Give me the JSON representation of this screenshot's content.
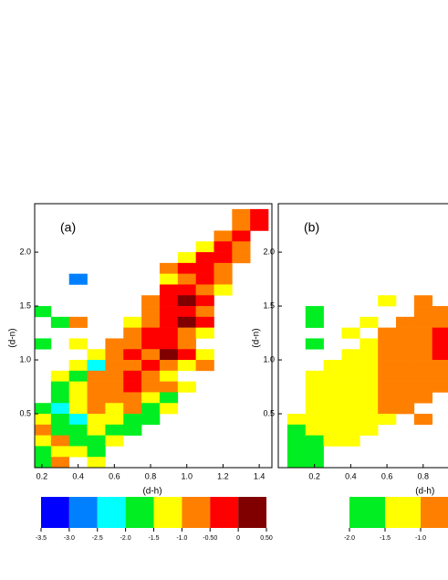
{
  "chart_data": [
    {
      "type": "heatmap",
      "label": "(a)",
      "xlabel": "(d-h)",
      "ylabel": "(d-n)",
      "xlim": [
        0.16,
        1.47
      ],
      "ylim": [
        0,
        2.45
      ],
      "xticks": [
        0.2,
        0.4,
        0.6,
        0.8,
        {
          "value": 1,
          "label": "1.0"
        },
        1.2,
        1.4
      ],
      "yticks": [
        0.5,
        {
          "value": 1,
          "label": "1.0"
        },
        1.5,
        {
          "value": 2,
          "label": "2.0"
        }
      ],
      "x": [
        0.2,
        0.3,
        0.4,
        0.5,
        0.6,
        0.7,
        0.8,
        0.9,
        1.0,
        1.1,
        1.2,
        1.3,
        1.4
      ],
      "y": [
        2.35,
        2.25,
        2.15,
        2.05,
        1.95,
        1.85,
        1.75,
        1.65,
        1.55,
        1.45,
        1.35,
        1.25,
        1.15,
        1.05,
        0.95,
        0.85,
        0.75,
        0.65,
        0.55,
        0.45,
        0.35,
        0.25,
        0.15,
        0.05
      ],
      "z": [
        [
          null,
          null,
          null,
          null,
          null,
          null,
          null,
          null,
          null,
          null,
          null,
          -0.75,
          -0.25
        ],
        [
          null,
          null,
          null,
          null,
          null,
          null,
          null,
          null,
          null,
          null,
          null,
          -0.75,
          -0.25
        ],
        [
          null,
          null,
          null,
          null,
          null,
          null,
          null,
          null,
          null,
          null,
          -0.75,
          -0.25,
          null
        ],
        [
          null,
          null,
          null,
          null,
          null,
          null,
          null,
          null,
          null,
          -1.25,
          -0.25,
          -0.75,
          null
        ],
        [
          null,
          null,
          null,
          null,
          null,
          null,
          null,
          null,
          -1.25,
          -0.25,
          -0.25,
          -0.75,
          null
        ],
        [
          null,
          null,
          null,
          null,
          null,
          null,
          null,
          -0.75,
          -0.25,
          -0.25,
          -0.75,
          null,
          null
        ],
        [
          null,
          null,
          -2.75,
          null,
          null,
          null,
          null,
          -1.25,
          -0.75,
          -0.25,
          -0.75,
          null,
          null
        ],
        [
          null,
          null,
          null,
          null,
          null,
          null,
          null,
          -0.25,
          -0.25,
          -0.75,
          -1.25,
          null,
          null
        ],
        [
          null,
          null,
          null,
          null,
          null,
          null,
          -0.75,
          -0.25,
          0.25,
          -0.25,
          null,
          null,
          null
        ],
        [
          -1.75,
          null,
          null,
          null,
          null,
          null,
          -0.75,
          -0.25,
          -0.25,
          -0.75,
          null,
          null,
          null
        ],
        [
          null,
          -1.75,
          -0.75,
          null,
          null,
          -1.25,
          -0.75,
          -0.25,
          0.25,
          -0.25,
          null,
          null,
          null
        ],
        [
          null,
          null,
          null,
          null,
          null,
          -0.75,
          -0.25,
          -0.25,
          -0.75,
          -1.25,
          null,
          null,
          null
        ],
        [
          -1.75,
          null,
          -1.25,
          null,
          -0.75,
          -0.75,
          -0.25,
          -0.25,
          -0.75,
          null,
          null,
          null,
          null
        ],
        [
          null,
          null,
          null,
          -1.25,
          -0.75,
          -0.25,
          -0.75,
          0.25,
          -0.25,
          -1.25,
          null,
          null,
          null
        ],
        [
          null,
          null,
          -1.25,
          -2.25,
          -0.75,
          -0.75,
          -0.25,
          -0.75,
          -1.25,
          -0.75,
          null,
          null,
          null
        ],
        [
          null,
          -1.25,
          -1.75,
          -0.75,
          -0.75,
          -0.25,
          -0.75,
          -1.25,
          null,
          null,
          null,
          null,
          null
        ],
        [
          null,
          -1.75,
          -1.25,
          -0.75,
          -0.75,
          -0.25,
          -0.75,
          -0.75,
          -1.25,
          null,
          null,
          null,
          null
        ],
        [
          null,
          -1.75,
          -1.25,
          -0.75,
          -0.75,
          -0.75,
          -1.25,
          -1.75,
          null,
          null,
          null,
          null,
          null
        ],
        [
          -1.75,
          -2.25,
          -1.25,
          -0.75,
          -1.25,
          -0.75,
          -1.75,
          -1.25,
          null,
          null,
          null,
          null,
          null
        ],
        [
          -1.25,
          -1.75,
          -2.25,
          -1.25,
          -1.25,
          -1.75,
          -1.75,
          null,
          null,
          null,
          null,
          null,
          null
        ],
        [
          -0.75,
          -1.75,
          -1.75,
          -1.25,
          -1.75,
          -1.75,
          null,
          null,
          null,
          null,
          null,
          null,
          null
        ],
        [
          -1.25,
          -0.75,
          -1.75,
          -1.75,
          -1.25,
          null,
          null,
          null,
          null,
          null,
          null,
          null,
          null
        ],
        [
          -1.75,
          -1.25,
          -1.25,
          -1.75,
          null,
          null,
          null,
          null,
          null,
          null,
          null,
          null,
          null
        ],
        [
          -1.75,
          -0.75,
          null,
          -1.25,
          null,
          null,
          null,
          null,
          null,
          null,
          null,
          null,
          null
        ]
      ],
      "colorbar": {
        "levels": [
          -3.5,
          {
            "value": -3,
            "label": "-3.0"
          },
          -2.5,
          {
            "value": -2,
            "label": "-2.0"
          },
          -1.5,
          {
            "value": -1,
            "label": "-1.0"
          },
          {
            "value": -0.5,
            "label": "-0.50"
          },
          0,
          {
            "value": 0.5,
            "label": "0.50"
          }
        ],
        "colors": [
          "#0000ff",
          "#0080ff",
          "#00ffff",
          "#00ee22",
          "#ffff00",
          "#ff8000",
          "#ff0000",
          "#800000"
        ]
      }
    },
    {
      "type": "heatmap",
      "label": "(b)",
      "xlabel": "(d-h)",
      "ylabel": "(d-n)",
      "xlim": [
        0,
        1.31
      ],
      "ylim": [
        0,
        2.45
      ],
      "xticks": [
        0.2,
        0.4,
        0.6,
        0.8
      ],
      "yticks": [
        0.5,
        {
          "value": 1,
          "label": "1.0"
        },
        1.5,
        {
          "value": 2,
          "label": "2.0"
        }
      ],
      "x": [
        0.1,
        0.2,
        0.3,
        0.4,
        0.5,
        0.6,
        0.7,
        0.8,
        0.9
      ],
      "y": [
        1.55,
        1.45,
        1.35,
        1.25,
        1.15,
        1.05,
        0.95,
        0.85,
        0.75,
        0.65,
        0.55,
        0.45,
        0.35,
        0.25,
        0.15,
        0.05
      ],
      "z": [
        [
          null,
          null,
          null,
          null,
          null,
          -1.25,
          null,
          -0.75,
          null
        ],
        [
          null,
          -1.75,
          null,
          null,
          null,
          null,
          null,
          -0.75,
          -0.75
        ],
        [
          null,
          -1.75,
          null,
          null,
          -1.25,
          null,
          -0.75,
          -0.75,
          -0.75
        ],
        [
          null,
          null,
          null,
          -1.25,
          null,
          -0.75,
          -0.75,
          -0.75,
          -0.25
        ],
        [
          null,
          -1.75,
          null,
          null,
          -1.25,
          -0.75,
          -0.75,
          -0.75,
          -0.25
        ],
        [
          null,
          null,
          null,
          -1.25,
          -1.25,
          -0.75,
          -0.75,
          -0.75,
          -0.25
        ],
        [
          null,
          null,
          -1.25,
          -1.25,
          -1.25,
          -0.75,
          -0.75,
          -0.75,
          -0.75
        ],
        [
          null,
          -1.25,
          -1.25,
          -1.25,
          -1.25,
          -0.75,
          -0.75,
          -0.75,
          -0.75
        ],
        [
          null,
          -1.25,
          -1.25,
          -1.25,
          -1.25,
          -0.75,
          -0.75,
          -0.75,
          -0.75
        ],
        [
          null,
          -1.25,
          -1.25,
          -1.25,
          -1.25,
          -0.75,
          -0.75,
          -0.75,
          null
        ],
        [
          null,
          -1.25,
          -1.25,
          -1.25,
          -1.25,
          -0.75,
          -0.75,
          null,
          null
        ],
        [
          -1.25,
          -1.25,
          -1.25,
          -1.25,
          -1.25,
          -1.25,
          null,
          -0.75,
          null
        ],
        [
          -1.75,
          -1.25,
          -1.25,
          -1.25,
          -1.25,
          null,
          null,
          null,
          null
        ],
        [
          -1.75,
          -1.75,
          -1.25,
          -1.25,
          null,
          null,
          null,
          null,
          null
        ],
        [
          -1.75,
          -1.75,
          null,
          null,
          null,
          null,
          null,
          null,
          null
        ],
        [
          -1.75,
          -1.75,
          null,
          null,
          null,
          null,
          null,
          null,
          null
        ]
      ],
      "colorbar": {
        "levels": [
          {
            "value": -2,
            "label": "-2.0"
          },
          -1.5,
          {
            "value": -1,
            "label": "-1.0"
          }
        ],
        "colors": [
          "#00ee22",
          "#ffff00",
          "#ff8000",
          "#ff0000"
        ]
      }
    }
  ]
}
